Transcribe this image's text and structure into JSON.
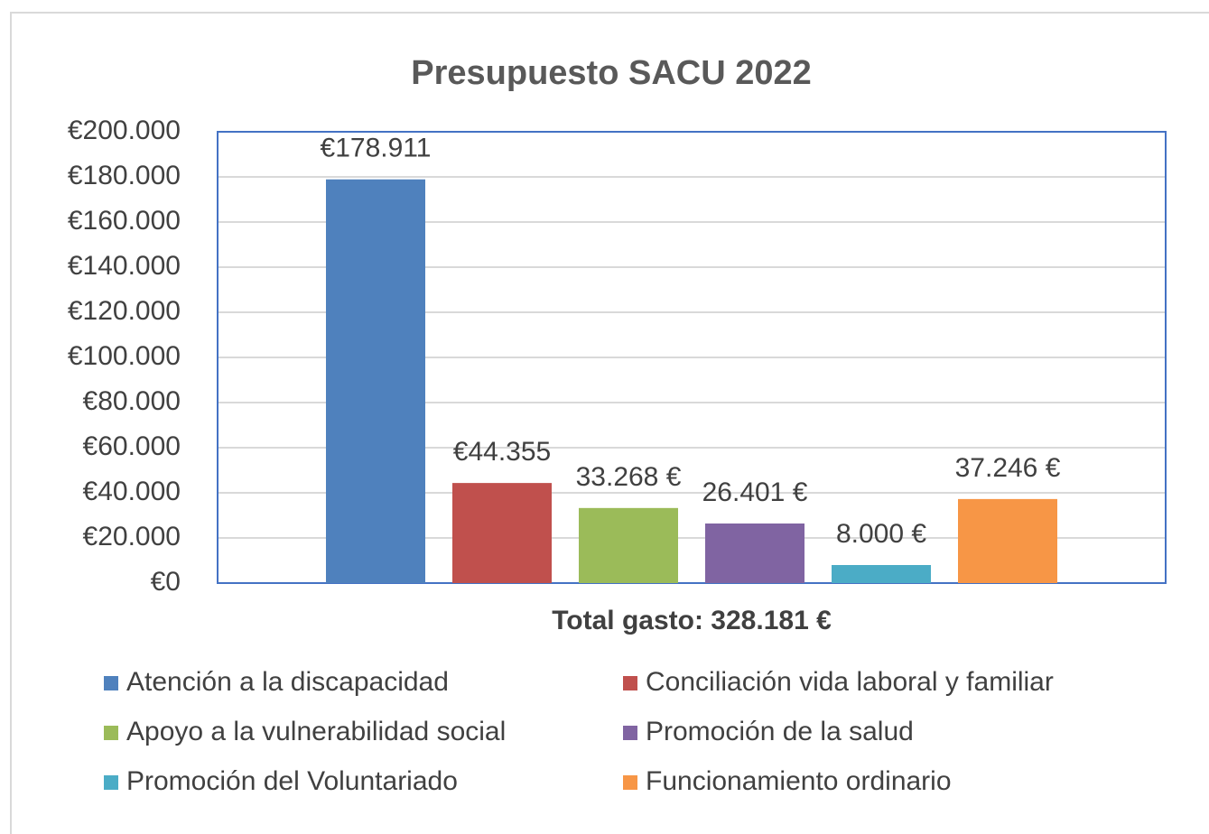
{
  "chart_data": {
    "type": "bar",
    "title": "Presupuesto SACU 2022",
    "x_label": "Total gasto: 328.181 €",
    "series": [
      {
        "name": "Atención a la discapacidad",
        "color": "#4f81bd",
        "values": [
          178911
        ],
        "value_labels": [
          "€178.911"
        ]
      },
      {
        "name": "Conciliación vida laboral y familiar",
        "color": "#c0504d",
        "values": [
          44355
        ],
        "value_labels": [
          "€44.355"
        ]
      },
      {
        "name": "Apoyo a la vulnerabilidad social",
        "color": "#9bbb59",
        "values": [
          33268
        ],
        "value_labels": [
          "33.268 €"
        ]
      },
      {
        "name": "Promoción de la salud",
        "color": "#8064a2",
        "values": [
          26401
        ],
        "value_labels": [
          "26.401 €"
        ]
      },
      {
        "name": "Promoción del Voluntariado",
        "color": "#4bacc6",
        "values": [
          8000
        ],
        "value_labels": [
          "8.000 €"
        ]
      },
      {
        "name": "Funcionamiento ordinario",
        "color": "#f79646",
        "values": [
          37246
        ],
        "value_labels": [
          "37.246 €"
        ]
      }
    ],
    "ylim": [
      0,
      200000
    ],
    "yticks": [
      {
        "value": 0,
        "label": "€0"
      },
      {
        "value": 20000,
        "label": "€20.000"
      },
      {
        "value": 40000,
        "label": "€40.000"
      },
      {
        "value": 60000,
        "label": "€60.000"
      },
      {
        "value": 80000,
        "label": "€80.000"
      },
      {
        "value": 100000,
        "label": "€100.000"
      },
      {
        "value": 120000,
        "label": "€120.000"
      },
      {
        "value": 140000,
        "label": "€140.000"
      },
      {
        "value": 160000,
        "label": "€160.000"
      },
      {
        "value": 180000,
        "label": "€180.000"
      },
      {
        "value": 200000,
        "label": "€200.000"
      }
    ],
    "grid": true,
    "legend": "bottom"
  }
}
